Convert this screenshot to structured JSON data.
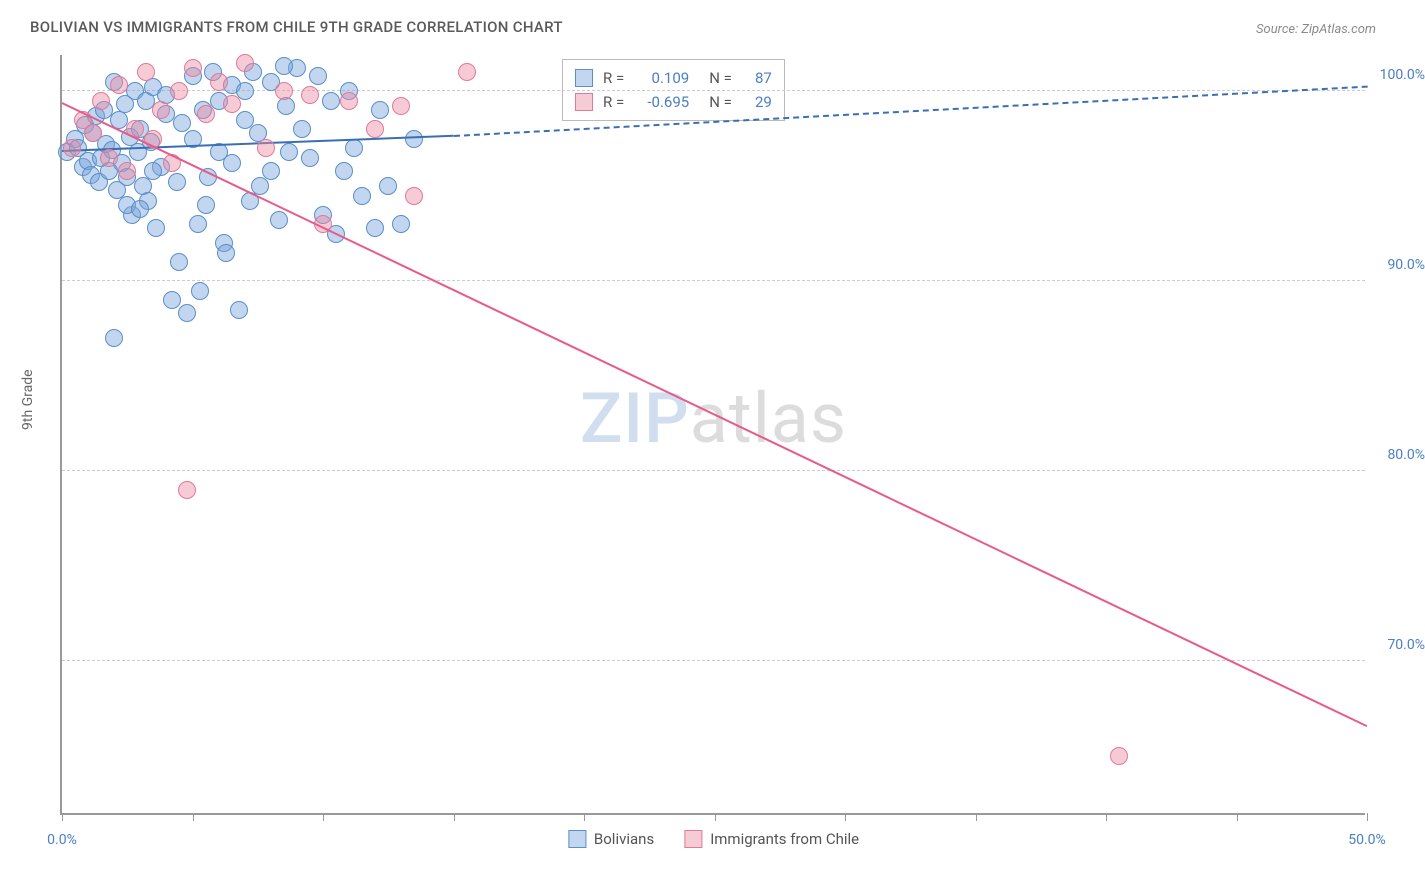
{
  "title": "BOLIVIAN VS IMMIGRANTS FROM CHILE 9TH GRADE CORRELATION CHART",
  "source": "Source: ZipAtlas.com",
  "ylabel": "9th Grade",
  "watermark": {
    "zip": "ZIP",
    "atlas": "atlas"
  },
  "chart": {
    "type": "scatter",
    "xlim": [
      0,
      50
    ],
    "ylim": [
      62,
      102
    ],
    "x_ticks": [
      0,
      5,
      10,
      15,
      20,
      25,
      30,
      35,
      40,
      45,
      50
    ],
    "x_tick_labels": {
      "0": "0.0%",
      "50": "50.0%"
    },
    "y_gridlines": [
      70,
      80,
      90,
      100
    ],
    "y_tick_labels": {
      "70": "70.0%",
      "80": "80.0%",
      "90": "90.0%",
      "100": "100.0%"
    },
    "background_color": "#ffffff",
    "grid_color": "#cccccc",
    "axis_color": "#999999",
    "tick_label_color": "#4a7fc4",
    "point_radius": 9,
    "series": [
      {
        "name": "Bolivians",
        "fill": "rgba(120,165,220,0.45)",
        "stroke": "#5a8fc9",
        "R": "0.109",
        "N": "87",
        "trend": {
          "x1": 0,
          "y1": 96.8,
          "x2": 15,
          "y2": 97.6,
          "color": "#3a6fb4",
          "dash_extend_x": 50,
          "dash_extend_y": 100.2
        },
        "points": [
          [
            0.2,
            96.8
          ],
          [
            0.5,
            97.5
          ],
          [
            0.6,
            97.0
          ],
          [
            0.8,
            96.0
          ],
          [
            0.9,
            98.2
          ],
          [
            1.0,
            96.3
          ],
          [
            1.1,
            95.6
          ],
          [
            1.2,
            97.8
          ],
          [
            1.3,
            98.7
          ],
          [
            1.4,
            95.2
          ],
          [
            1.5,
            96.5
          ],
          [
            1.6,
            99.0
          ],
          [
            1.7,
            97.2
          ],
          [
            1.8,
            95.8
          ],
          [
            1.9,
            96.9
          ],
          [
            2.0,
            100.5
          ],
          [
            2.1,
            94.8
          ],
          [
            2.2,
            98.5
          ],
          [
            2.3,
            96.2
          ],
          [
            2.4,
            99.3
          ],
          [
            2.5,
            95.5
          ],
          [
            2.6,
            97.6
          ],
          [
            2.7,
            93.5
          ],
          [
            2.8,
            100.0
          ],
          [
            2.9,
            96.8
          ],
          [
            3.0,
            98.0
          ],
          [
            3.1,
            95.0
          ],
          [
            3.2,
            99.5
          ],
          [
            3.3,
            94.2
          ],
          [
            3.4,
            97.3
          ],
          [
            3.5,
            100.2
          ],
          [
            3.6,
            92.8
          ],
          [
            3.8,
            96.0
          ],
          [
            4.0,
            99.8
          ],
          [
            4.2,
            89.0
          ],
          [
            4.4,
            95.2
          ],
          [
            4.6,
            98.3
          ],
          [
            4.8,
            88.3
          ],
          [
            5.0,
            100.8
          ],
          [
            5.2,
            93.0
          ],
          [
            5.4,
            99.0
          ],
          [
            5.6,
            95.5
          ],
          [
            5.8,
            101.0
          ],
          [
            6.0,
            96.8
          ],
          [
            6.2,
            92.0
          ],
          [
            6.5,
            100.3
          ],
          [
            6.8,
            88.5
          ],
          [
            7.0,
            98.5
          ],
          [
            7.3,
            101.0
          ],
          [
            7.6,
            95.0
          ],
          [
            8.0,
            100.5
          ],
          [
            8.3,
            93.2
          ],
          [
            8.6,
            99.2
          ],
          [
            9.0,
            101.2
          ],
          [
            9.5,
            96.5
          ],
          [
            10.0,
            93.5
          ],
          [
            10.5,
            92.5
          ],
          [
            11.0,
            100.0
          ],
          [
            11.5,
            94.5
          ],
          [
            12.0,
            92.8
          ],
          [
            2.0,
            87.0
          ],
          [
            2.5,
            94.0
          ],
          [
            3.0,
            93.8
          ],
          [
            3.5,
            95.8
          ],
          [
            4.0,
            98.8
          ],
          [
            5.0,
            97.5
          ],
          [
            5.5,
            94.0
          ],
          [
            6.0,
            99.5
          ],
          [
            6.5,
            96.2
          ],
          [
            7.0,
            100.0
          ],
          [
            7.5,
            97.8
          ],
          [
            8.0,
            95.8
          ],
          [
            8.5,
            101.3
          ],
          [
            9.2,
            98.0
          ],
          [
            9.8,
            100.8
          ],
          [
            10.3,
            99.5
          ],
          [
            11.2,
            97.0
          ],
          [
            12.5,
            95.0
          ],
          [
            13.0,
            93.0
          ],
          [
            13.5,
            97.5
          ],
          [
            4.5,
            91.0
          ],
          [
            5.3,
            89.5
          ],
          [
            6.3,
            91.5
          ],
          [
            7.2,
            94.2
          ],
          [
            8.7,
            96.8
          ],
          [
            10.8,
            95.8
          ],
          [
            12.2,
            99.0
          ]
        ]
      },
      {
        "name": "Immigrants from Chile",
        "fill": "rgba(235,140,165,0.45)",
        "stroke": "#e07a9a",
        "R": "-0.695",
        "N": "29",
        "trend": {
          "x1": 0,
          "y1": 99.3,
          "x2": 50,
          "y2": 66.5,
          "color": "#e85a8a"
        },
        "points": [
          [
            0.4,
            97.0
          ],
          [
            0.8,
            98.5
          ],
          [
            1.2,
            97.8
          ],
          [
            1.5,
            99.5
          ],
          [
            1.8,
            96.5
          ],
          [
            2.2,
            100.3
          ],
          [
            2.5,
            95.8
          ],
          [
            2.8,
            98.0
          ],
          [
            3.2,
            101.0
          ],
          [
            3.5,
            97.5
          ],
          [
            3.8,
            99.0
          ],
          [
            4.2,
            96.2
          ],
          [
            4.5,
            100.0
          ],
          [
            5.0,
            101.2
          ],
          [
            5.5,
            98.8
          ],
          [
            6.0,
            100.5
          ],
          [
            6.5,
            99.3
          ],
          [
            7.0,
            101.5
          ],
          [
            7.8,
            97.0
          ],
          [
            8.5,
            100.0
          ],
          [
            9.5,
            99.8
          ],
          [
            10.0,
            93.0
          ],
          [
            11.0,
            99.5
          ],
          [
            12.0,
            98.0
          ],
          [
            13.0,
            99.2
          ],
          [
            13.5,
            94.5
          ],
          [
            15.5,
            101.0
          ],
          [
            4.8,
            79.0
          ],
          [
            40.5,
            65.0
          ]
        ]
      }
    ]
  },
  "legend_top": {
    "R_label": "R =",
    "N_label": "N ="
  },
  "legend_bottom": [
    {
      "label": "Bolivians",
      "fill": "rgba(120,165,220,0.45)",
      "stroke": "#5a8fc9"
    },
    {
      "label": "Immigrants from Chile",
      "fill": "rgba(235,140,165,0.45)",
      "stroke": "#e07a9a"
    }
  ]
}
